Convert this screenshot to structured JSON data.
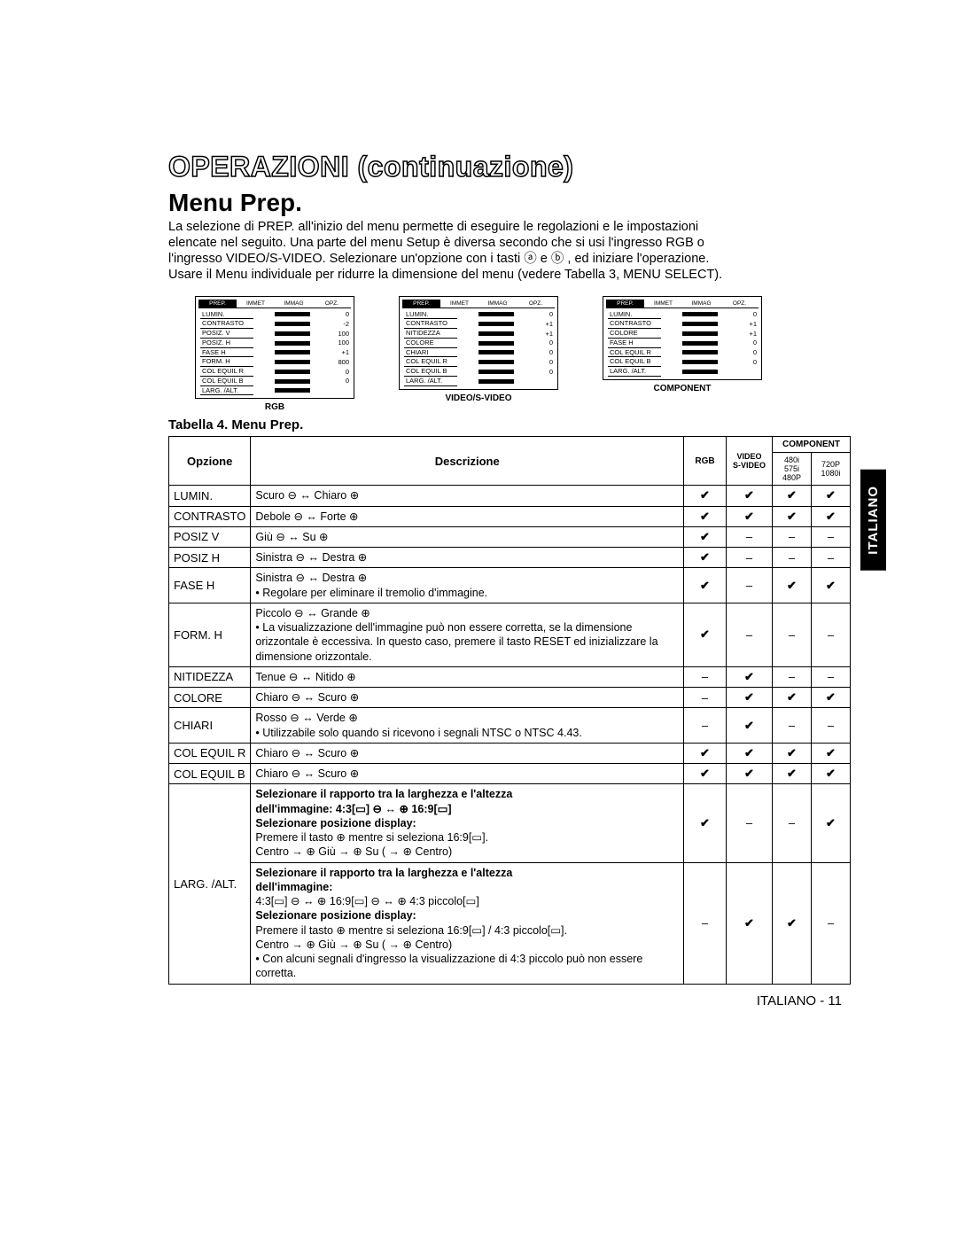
{
  "heading_outline": "OPERAZIONI (continuazione)",
  "section_title": "Menu Prep.",
  "intro_lines": [
    "La selezione di PREP. all'inizio del menu permette di eseguire le regolazioni e le impostazioni",
    "elencate nel seguito. Una parte del menu Setup è diversa secondo che si usi l'ingresso RGB o",
    "l'ingresso VIDEO/S-VIDEO. Selezionare un'opzione con i tasti ⓐ e ⓑ , ed iniziare l'operazione.",
    "Usare il Menu individuale per ridurre la dimensione del menu (vedere Tabella 3, MENU SELECT)."
  ],
  "previews": [
    {
      "caption": "RGB",
      "tabs": [
        "PREP.",
        "IMMET",
        "IMMAG",
        "OPZ."
      ],
      "rows": [
        {
          "label": "LUMIN.",
          "val": "0"
        },
        {
          "label": "CONTRASTO",
          "val": "-2"
        },
        {
          "label": "POSIZ. V",
          "val": "100"
        },
        {
          "label": "POSIZ. H",
          "val": "100"
        },
        {
          "label": "FASE H",
          "val": "+1"
        },
        {
          "label": "FORM. H",
          "val": "800"
        },
        {
          "label": "COL EQUIL R",
          "val": "0"
        },
        {
          "label": "COL EQUIL B",
          "val": "0"
        },
        {
          "label": "LARG. /ALT.",
          "val": ""
        }
      ]
    },
    {
      "caption": "VIDEO/S-VIDEO",
      "tabs": [
        "PREP.",
        "IMMET",
        "IMMAG",
        "OPZ."
      ],
      "rows": [
        {
          "label": "LUMIN.",
          "val": "0"
        },
        {
          "label": "CONTRASTO",
          "val": "+1"
        },
        {
          "label": "NITIDEZZA",
          "val": "+1"
        },
        {
          "label": "COLORE",
          "val": "0"
        },
        {
          "label": "CHIARI",
          "val": "0"
        },
        {
          "label": "COL EQUIL R",
          "val": "0"
        },
        {
          "label": "COL EQUIL B",
          "val": "0"
        },
        {
          "label": "LARG. /ALT.",
          "val": ""
        }
      ]
    },
    {
      "caption": "COMPONENT",
      "tabs": [
        "PREP.",
        "IMMET",
        "IMMAG",
        "OPZ."
      ],
      "rows": [
        {
          "label": "LUMIN.",
          "val": "0"
        },
        {
          "label": "CONTRASTO",
          "val": "+1"
        },
        {
          "label": "COLORE",
          "val": "+1"
        },
        {
          "label": "FASE H",
          "val": "0"
        },
        {
          "label": "COL EQUIL R",
          "val": "0"
        },
        {
          "label": "COL EQUIL B",
          "val": "0"
        },
        {
          "label": "LARG. /ALT.",
          "val": ""
        }
      ]
    }
  ],
  "table_title": "Tabella 4. Menu Prep.",
  "table_headers": {
    "opzione": "Opzione",
    "descrizione": "Descrizione",
    "rgb": "RGB",
    "video": "VIDEO\nS-VIDEO",
    "component": "COMPONENT",
    "comp_a": "480i\n575i\n480P",
    "comp_b": "720P\n1080i"
  },
  "check": "✔",
  "dash": "–",
  "rows": [
    {
      "opt": "LUMIN.",
      "desc": "Scuro ⊖ ↔ Chiaro ⊕",
      "c": [
        "✔",
        "✔",
        "✔",
        "✔"
      ]
    },
    {
      "opt": "CONTRASTO",
      "desc": "Debole ⊖ ↔ Forte ⊕",
      "c": [
        "✔",
        "✔",
        "✔",
        "✔"
      ]
    },
    {
      "opt": "POSIZ V",
      "desc": "Giù ⊖ ↔ Su ⊕",
      "c": [
        "✔",
        "–",
        "–",
        "–"
      ]
    },
    {
      "opt": "POSIZ H",
      "desc": "Sinistra ⊖ ↔ Destra ⊕",
      "c": [
        "✔",
        "–",
        "–",
        "–"
      ]
    },
    {
      "opt": "FASE H",
      "desc": "Sinistra ⊖ ↔ Destra ⊕\n• Regolare per eliminare il tremolio d'immagine.",
      "c": [
        "✔",
        "–",
        "✔",
        "✔"
      ]
    },
    {
      "opt": "FORM. H",
      "desc": "Piccolo ⊖ ↔ Grande ⊕\n• La visualizzazione dell'immagine può non essere corretta, se la dimensione orizzontale è eccessiva. In questo caso, premere il tasto RESET ed inizializzare la dimensione orizzontale.",
      "c": [
        "✔",
        "–",
        "–",
        "–"
      ]
    },
    {
      "opt": "NITIDEZZA",
      "desc": "Tenue ⊖ ↔ Nitido ⊕",
      "c": [
        "–",
        "✔",
        "–",
        "–"
      ]
    },
    {
      "opt": "COLORE",
      "desc": "Chiaro ⊖ ↔ Scuro ⊕",
      "c": [
        "–",
        "✔",
        "✔",
        "✔"
      ]
    },
    {
      "opt": "CHIARI",
      "desc": "Rosso ⊖ ↔ Verde ⊕\n• Utilizzabile solo quando si ricevono i segnali NTSC o NTSC 4.43.",
      "c": [
        "–",
        "✔",
        "–",
        "–"
      ]
    },
    {
      "opt": "COL EQUIL R",
      "desc": "Chiaro ⊖ ↔ Scuro ⊕",
      "c": [
        "✔",
        "✔",
        "✔",
        "✔"
      ]
    },
    {
      "opt": "COL EQUIL B",
      "desc": "Chiaro ⊖ ↔ Scuro ⊕",
      "c": [
        "✔",
        "✔",
        "✔",
        "✔"
      ]
    }
  ],
  "larg_alt": {
    "label": "LARG. /ALT.",
    "block1": {
      "l1b": "Selezionare il rapporto tra la larghezza e l'altezza",
      "l2": "dell'immagine: 4:3[▭] ⊖ ↔ ⊕ 16:9[▭]",
      "l3b": "Selezionare posizione display:",
      "l4": "Premere il tasto ⊕ mentre si seleziona 16:9[▭].",
      "l5": "Centro → ⊕ Giù → ⊕ Su ( → ⊕ Centro)",
      "c": [
        "✔",
        "–",
        "–",
        "✔"
      ]
    },
    "block2": {
      "l1b": "Selezionare il rapporto tra la larghezza e l'altezza",
      "l2b": "dell'immagine:",
      "l3": "4:3[▭] ⊖ ↔ ⊕ 16:9[▭] ⊖ ↔ ⊕ 4:3 piccolo[▭]",
      "l4b": "Selezionare posizione display:",
      "l5": "Premere il tasto ⊕ mentre si seleziona 16:9[▭] / 4:3 piccolo[▭].",
      "l6": "Centro → ⊕ Giù → ⊕ Su ( → ⊕ Centro)",
      "l7": "• Con alcuni segnali d'ingresso la visualizzazione di 4:3 piccolo può non essere corretta.",
      "c": [
        "–",
        "✔",
        "✔",
        "–"
      ]
    }
  },
  "side_tab": "ITALIANO",
  "footer": "ITALIANO - 11"
}
